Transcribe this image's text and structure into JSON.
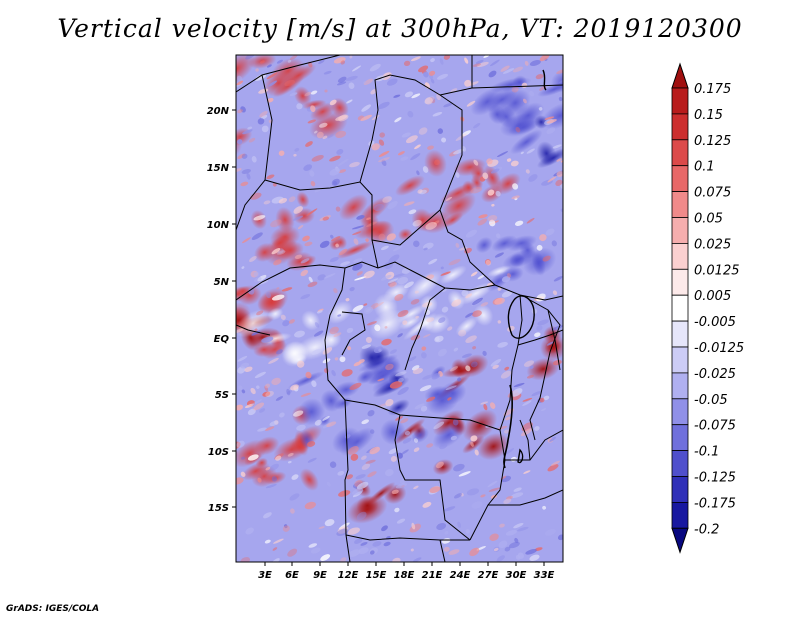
{
  "title": "Vertical velocity [m/s] at 300hPa, VT: 2019120300",
  "credit": "GrADS: IGES/COLA",
  "map": {
    "variable": "Vertical velocity",
    "units": "m/s",
    "level": "300hPa",
    "valid_time": "2019120300",
    "lat_labels": [
      "20N",
      "15N",
      "10N",
      "5N",
      "EQ",
      "5S",
      "10S",
      "15S"
    ],
    "lon_labels": [
      "3E",
      "6E",
      "9E",
      "12E",
      "15E",
      "18E",
      "21E",
      "24E",
      "27E",
      "30E",
      "33E"
    ]
  },
  "colorbar": {
    "levels": [
      "0.175",
      "0.15",
      "0.125",
      "0.1",
      "0.075",
      "0.05",
      "0.025",
      "0.0125",
      "0.005",
      "-0.005",
      "-0.0125",
      "-0.025",
      "-0.05",
      "-0.075",
      "-0.1",
      "-0.125",
      "-0.175",
      "-0.2"
    ],
    "colors": [
      "#a01010",
      "#b81c1c",
      "#cc2e2e",
      "#dc4a4a",
      "#e86868",
      "#f08a8a",
      "#f6aeae",
      "#fbd0d0",
      "#fdeaea",
      "#ffffff",
      "#e6e6fa",
      "#ccccf6",
      "#b0b0f0",
      "#9090e8",
      "#7070dc",
      "#5050cc",
      "#3030b8",
      "#1818a0",
      "#080880"
    ]
  }
}
